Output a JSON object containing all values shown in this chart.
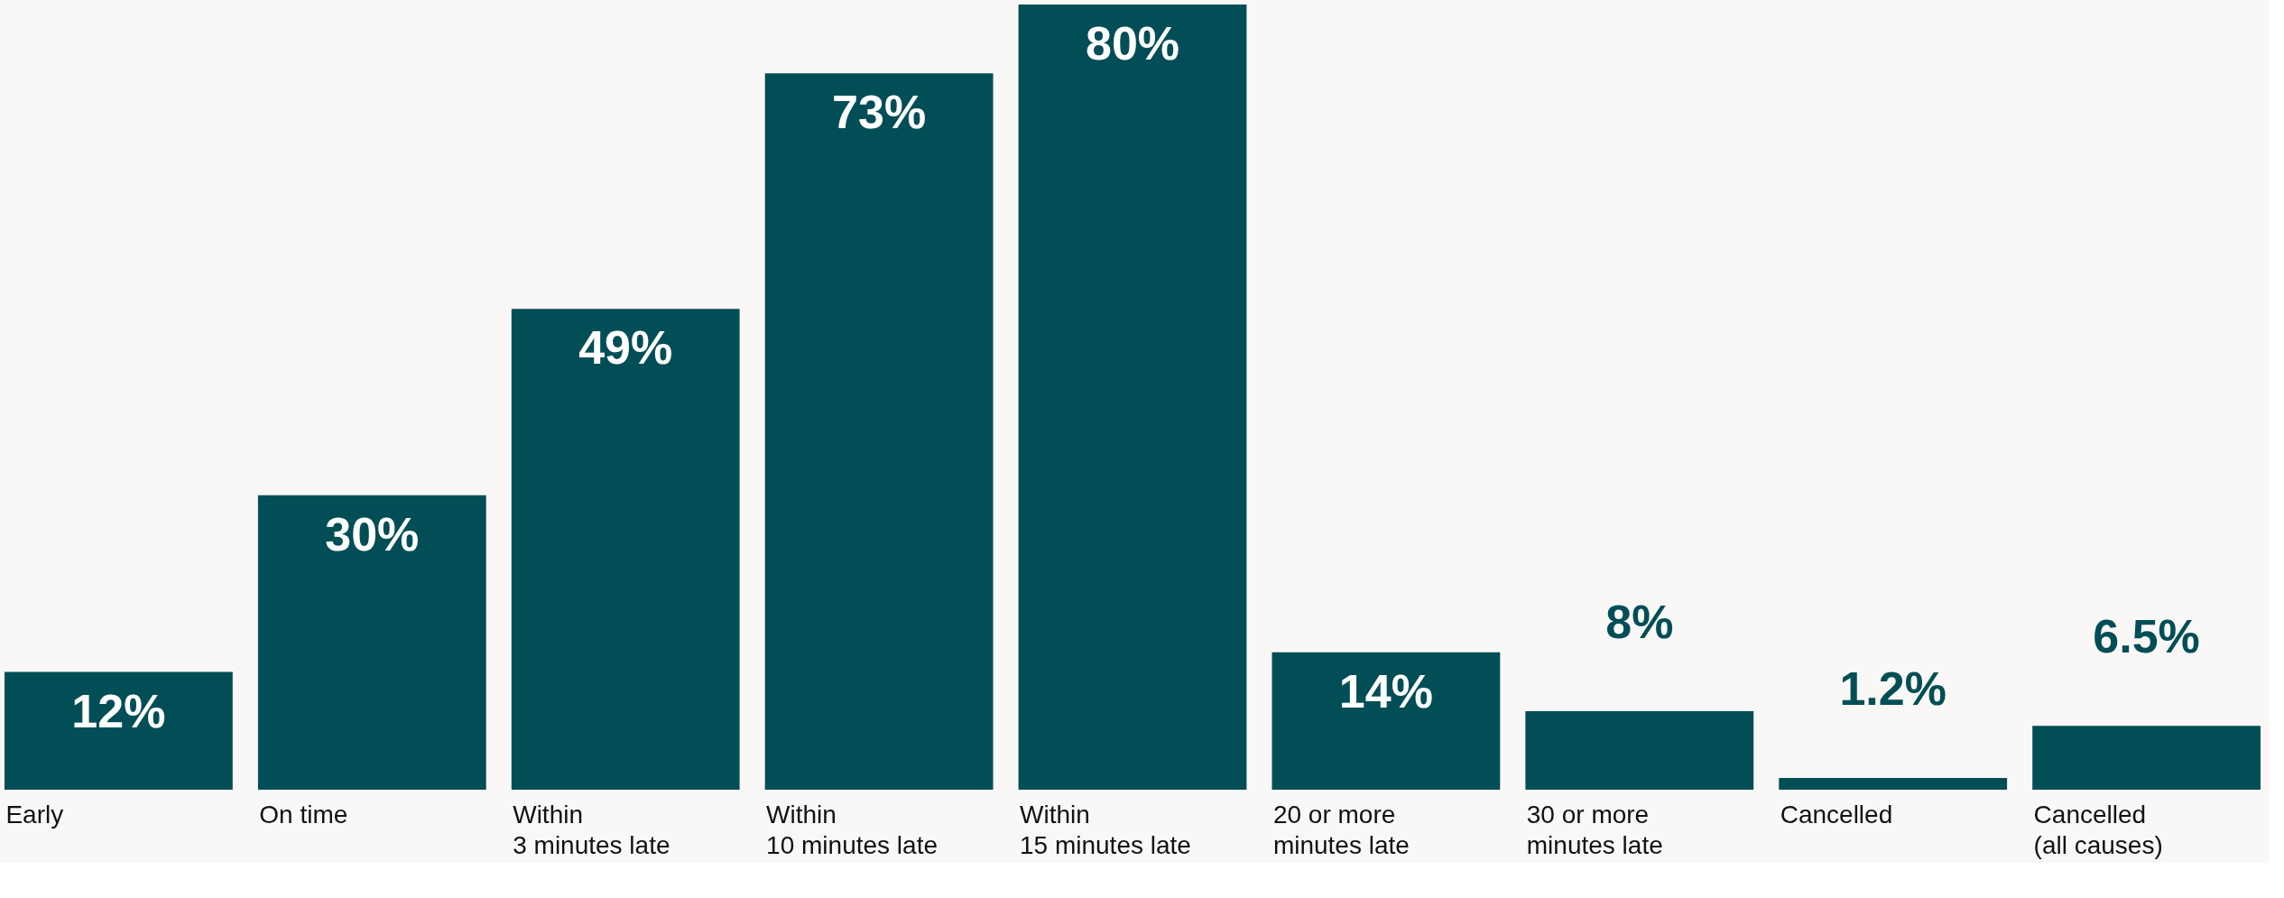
{
  "chart_data": {
    "type": "bar",
    "categories": [
      "Early",
      "On time",
      "Within\n3 minutes late",
      "Within\n10 minutes late",
      "Within\n15 minutes late",
      "20 or more\nminutes late",
      "30 or more\nminutes late",
      "Cancelled",
      "Cancelled\n(all causes)"
    ],
    "values": [
      12,
      30,
      49,
      73,
      80,
      14,
      8,
      1.2,
      6.5
    ],
    "value_labels": [
      "12%",
      "30%",
      "49%",
      "73%",
      "80%",
      "14%",
      "8%",
      "1.2%",
      "6.5%"
    ],
    "color": "#024e56",
    "grid": false
  }
}
